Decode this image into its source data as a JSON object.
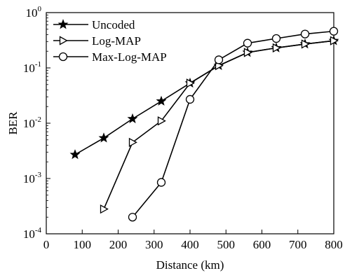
{
  "chart_data": {
    "type": "line",
    "xlabel": "Distance (km)",
    "ylabel": "BER",
    "xlim": [
      0,
      800
    ],
    "ylim_exp": [
      -4,
      0
    ],
    "log_y": true,
    "grid": false,
    "legend_position": "top-left",
    "x_ticks": [
      "0",
      "100",
      "200",
      "300",
      "400",
      "500",
      "600",
      "700",
      "800"
    ],
    "x_tick_values": [
      0,
      100,
      200,
      300,
      400,
      500,
      600,
      700,
      800
    ],
    "y_ticks": [
      {
        "base": "10",
        "exp": "-4",
        "value": -4
      },
      {
        "base": "10",
        "exp": "-3",
        "value": -3
      },
      {
        "base": "10",
        "exp": "-2",
        "value": -2
      },
      {
        "base": "10",
        "exp": "-1",
        "value": -1
      },
      {
        "base": "10",
        "exp": "0",
        "value": 0
      }
    ],
    "series": [
      {
        "name": "Uncoded",
        "marker": "star",
        "x": [
          80,
          160,
          240,
          320,
          400,
          480,
          560,
          640,
          720,
          800
        ],
        "y": [
          0.0027,
          0.0054,
          0.012,
          0.025,
          0.053,
          0.11,
          0.19,
          0.23,
          0.27,
          0.31
        ]
      },
      {
        "name": "Log-MAP",
        "marker": "triangle-right",
        "x": [
          160,
          240,
          320,
          400,
          480,
          560,
          640,
          720,
          800
        ],
        "y": [
          0.00028,
          0.0045,
          0.011,
          0.053,
          0.11,
          0.19,
          0.23,
          0.27,
          0.31
        ]
      },
      {
        "name": "Max-Log-MAP",
        "marker": "circle",
        "x": [
          240,
          320,
          400,
          480,
          560,
          640,
          720,
          800
        ],
        "y": [
          0.0002,
          0.00085,
          0.027,
          0.14,
          0.28,
          0.34,
          0.41,
          0.46
        ]
      }
    ]
  }
}
